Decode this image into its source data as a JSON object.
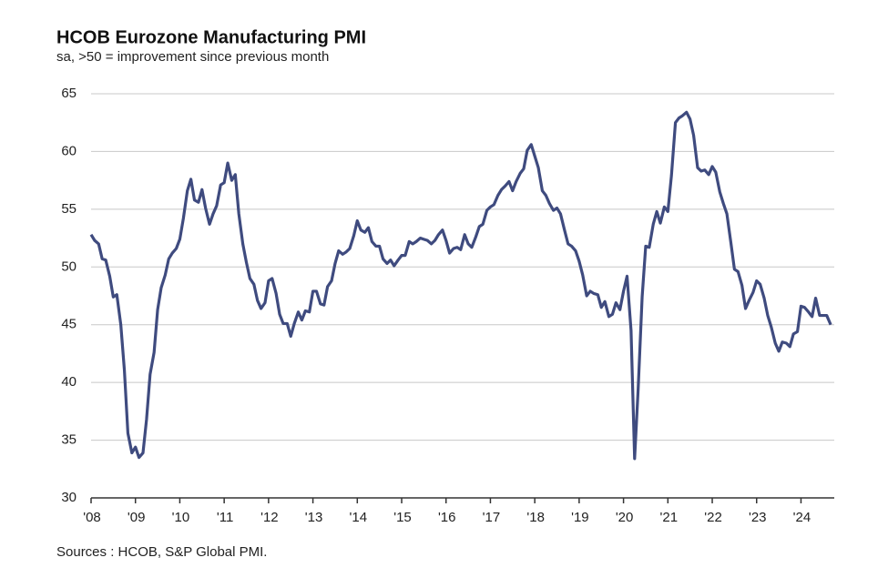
{
  "chart_data": {
    "type": "line",
    "title": "HCOB Eurozone Manufacturing PMI",
    "subtitle": "sa, >50 = improvement  since previous month",
    "source": "Sources : HCOB, S&P Global PMI.",
    "color": "#3f4b7f",
    "grid": true,
    "ylim": [
      30,
      65
    ],
    "yticks": [
      30,
      35,
      40,
      45,
      50,
      55,
      60,
      65
    ],
    "xlim": [
      2008,
      2024.75
    ],
    "xticks": [
      {
        "value": 2008,
        "label": "'08"
      },
      {
        "value": 2009,
        "label": "'09"
      },
      {
        "value": 2010,
        "label": "'10"
      },
      {
        "value": 2011,
        "label": "'11"
      },
      {
        "value": 2012,
        "label": "'12"
      },
      {
        "value": 2013,
        "label": "'13"
      },
      {
        "value": 2014,
        "label": "'14"
      },
      {
        "value": 2015,
        "label": "'15"
      },
      {
        "value": 2016,
        "label": "'16"
      },
      {
        "value": 2017,
        "label": "'17"
      },
      {
        "value": 2018,
        "label": "'18"
      },
      {
        "value": 2019,
        "label": "'19"
      },
      {
        "value": 2020,
        "label": "'20"
      },
      {
        "value": 2021,
        "label": "'21"
      },
      {
        "value": 2022,
        "label": "'22"
      },
      {
        "value": 2023,
        "label": "'23"
      },
      {
        "value": 2024,
        "label": "'24"
      }
    ],
    "x": [
      2008.0,
      2008.08,
      2008.17,
      2008.25,
      2008.33,
      2008.42,
      2008.5,
      2008.58,
      2008.67,
      2008.75,
      2008.83,
      2008.92,
      2009.0,
      2009.08,
      2009.17,
      2009.25,
      2009.33,
      2009.42,
      2009.5,
      2009.58,
      2009.67,
      2009.75,
      2009.83,
      2009.92,
      2010.0,
      2010.08,
      2010.17,
      2010.25,
      2010.33,
      2010.42,
      2010.5,
      2010.58,
      2010.67,
      2010.75,
      2010.83,
      2010.92,
      2011.0,
      2011.08,
      2011.17,
      2011.25,
      2011.33,
      2011.42,
      2011.5,
      2011.58,
      2011.67,
      2011.75,
      2011.83,
      2011.92,
      2012.0,
      2012.08,
      2012.17,
      2012.25,
      2012.33,
      2012.42,
      2012.5,
      2012.58,
      2012.67,
      2012.75,
      2012.83,
      2012.92,
      2013.0,
      2013.08,
      2013.17,
      2013.25,
      2013.33,
      2013.42,
      2013.5,
      2013.58,
      2013.67,
      2013.75,
      2013.83,
      2013.92,
      2014.0,
      2014.08,
      2014.17,
      2014.25,
      2014.33,
      2014.42,
      2014.5,
      2014.58,
      2014.67,
      2014.75,
      2014.83,
      2014.92,
      2015.0,
      2015.08,
      2015.17,
      2015.25,
      2015.33,
      2015.42,
      2015.5,
      2015.58,
      2015.67,
      2015.75,
      2015.83,
      2015.92,
      2016.0,
      2016.08,
      2016.17,
      2016.25,
      2016.33,
      2016.42,
      2016.5,
      2016.58,
      2016.67,
      2016.75,
      2016.83,
      2016.92,
      2017.0,
      2017.08,
      2017.17,
      2017.25,
      2017.33,
      2017.42,
      2017.5,
      2017.58,
      2017.67,
      2017.75,
      2017.83,
      2017.92,
      2018.0,
      2018.08,
      2018.17,
      2018.25,
      2018.33,
      2018.42,
      2018.5,
      2018.58,
      2018.67,
      2018.75,
      2018.83,
      2018.92,
      2019.0,
      2019.08,
      2019.17,
      2019.25,
      2019.33,
      2019.42,
      2019.5,
      2019.58,
      2019.67,
      2019.75,
      2019.83,
      2019.92,
      2020.0,
      2020.08,
      2020.17,
      2020.25,
      2020.33,
      2020.42,
      2020.5,
      2020.58,
      2020.67,
      2020.75,
      2020.83,
      2020.92,
      2021.0,
      2021.08,
      2021.17,
      2021.25,
      2021.33,
      2021.42,
      2021.5,
      2021.58,
      2021.67,
      2021.75,
      2021.83,
      2021.92,
      2022.0,
      2022.08,
      2022.17,
      2022.25,
      2022.33,
      2022.42,
      2022.5,
      2022.58,
      2022.67,
      2022.75,
      2022.83,
      2022.92,
      2023.0,
      2023.08,
      2023.17,
      2023.25,
      2023.33,
      2023.42,
      2023.5,
      2023.58,
      2023.67,
      2023.75,
      2023.83,
      2023.92,
      2024.0,
      2024.08,
      2024.17,
      2024.25,
      2024.33,
      2024.42,
      2024.5,
      2024.58,
      2024.67
    ],
    "values": [
      52.8,
      52.3,
      52.0,
      50.7,
      50.6,
      49.2,
      47.4,
      47.6,
      45.0,
      41.1,
      35.6,
      33.9,
      34.4,
      33.5,
      33.9,
      36.8,
      40.7,
      42.6,
      46.3,
      48.2,
      49.3,
      50.7,
      51.2,
      51.6,
      52.4,
      54.2,
      56.6,
      57.6,
      55.8,
      55.6,
      56.7,
      55.1,
      53.7,
      54.6,
      55.3,
      57.1,
      57.3,
      59.0,
      57.5,
      58.0,
      54.6,
      52.0,
      50.4,
      49.0,
      48.5,
      47.1,
      46.4,
      46.9,
      48.8,
      49.0,
      47.7,
      45.9,
      45.1,
      45.1,
      44.0,
      45.1,
      46.1,
      45.4,
      46.2,
      46.1,
      47.9,
      47.9,
      46.8,
      46.7,
      48.3,
      48.8,
      50.3,
      51.4,
      51.1,
      51.3,
      51.6,
      52.7,
      54.0,
      53.2,
      53.0,
      53.4,
      52.2,
      51.8,
      51.8,
      50.7,
      50.3,
      50.6,
      50.1,
      50.6,
      51.0,
      51.0,
      52.2,
      52.0,
      52.2,
      52.5,
      52.4,
      52.3,
      52.0,
      52.3,
      52.8,
      53.2,
      52.3,
      51.2,
      51.6,
      51.7,
      51.5,
      52.8,
      52.0,
      51.7,
      52.6,
      53.5,
      53.7,
      54.9,
      55.2,
      55.4,
      56.2,
      56.7,
      57.0,
      57.4,
      56.6,
      57.4,
      58.1,
      58.5,
      60.1,
      60.6,
      59.6,
      58.6,
      56.6,
      56.2,
      55.5,
      54.9,
      55.1,
      54.6,
      53.2,
      52.0,
      51.8,
      51.4,
      50.5,
      49.3,
      47.5,
      47.9,
      47.7,
      47.6,
      46.5,
      47.0,
      45.7,
      45.9,
      46.9,
      46.3,
      47.9,
      49.2,
      44.5,
      33.4,
      39.4,
      47.4,
      51.8,
      51.7,
      53.7,
      54.8,
      53.8,
      55.2,
      54.8,
      57.9,
      62.5,
      62.9,
      63.1,
      63.4,
      62.8,
      61.4,
      58.6,
      58.3,
      58.4,
      58.0,
      58.7,
      58.2,
      56.5,
      55.5,
      54.6,
      52.1,
      49.8,
      49.6,
      48.4,
      46.4,
      47.1,
      47.8,
      48.8,
      48.5,
      47.3,
      45.8,
      44.8,
      43.4,
      42.7,
      43.5,
      43.4,
      43.1,
      44.2,
      44.4,
      46.6,
      46.5,
      46.1,
      45.7,
      47.3,
      45.8,
      45.8,
      45.8,
      45.0
    ]
  }
}
